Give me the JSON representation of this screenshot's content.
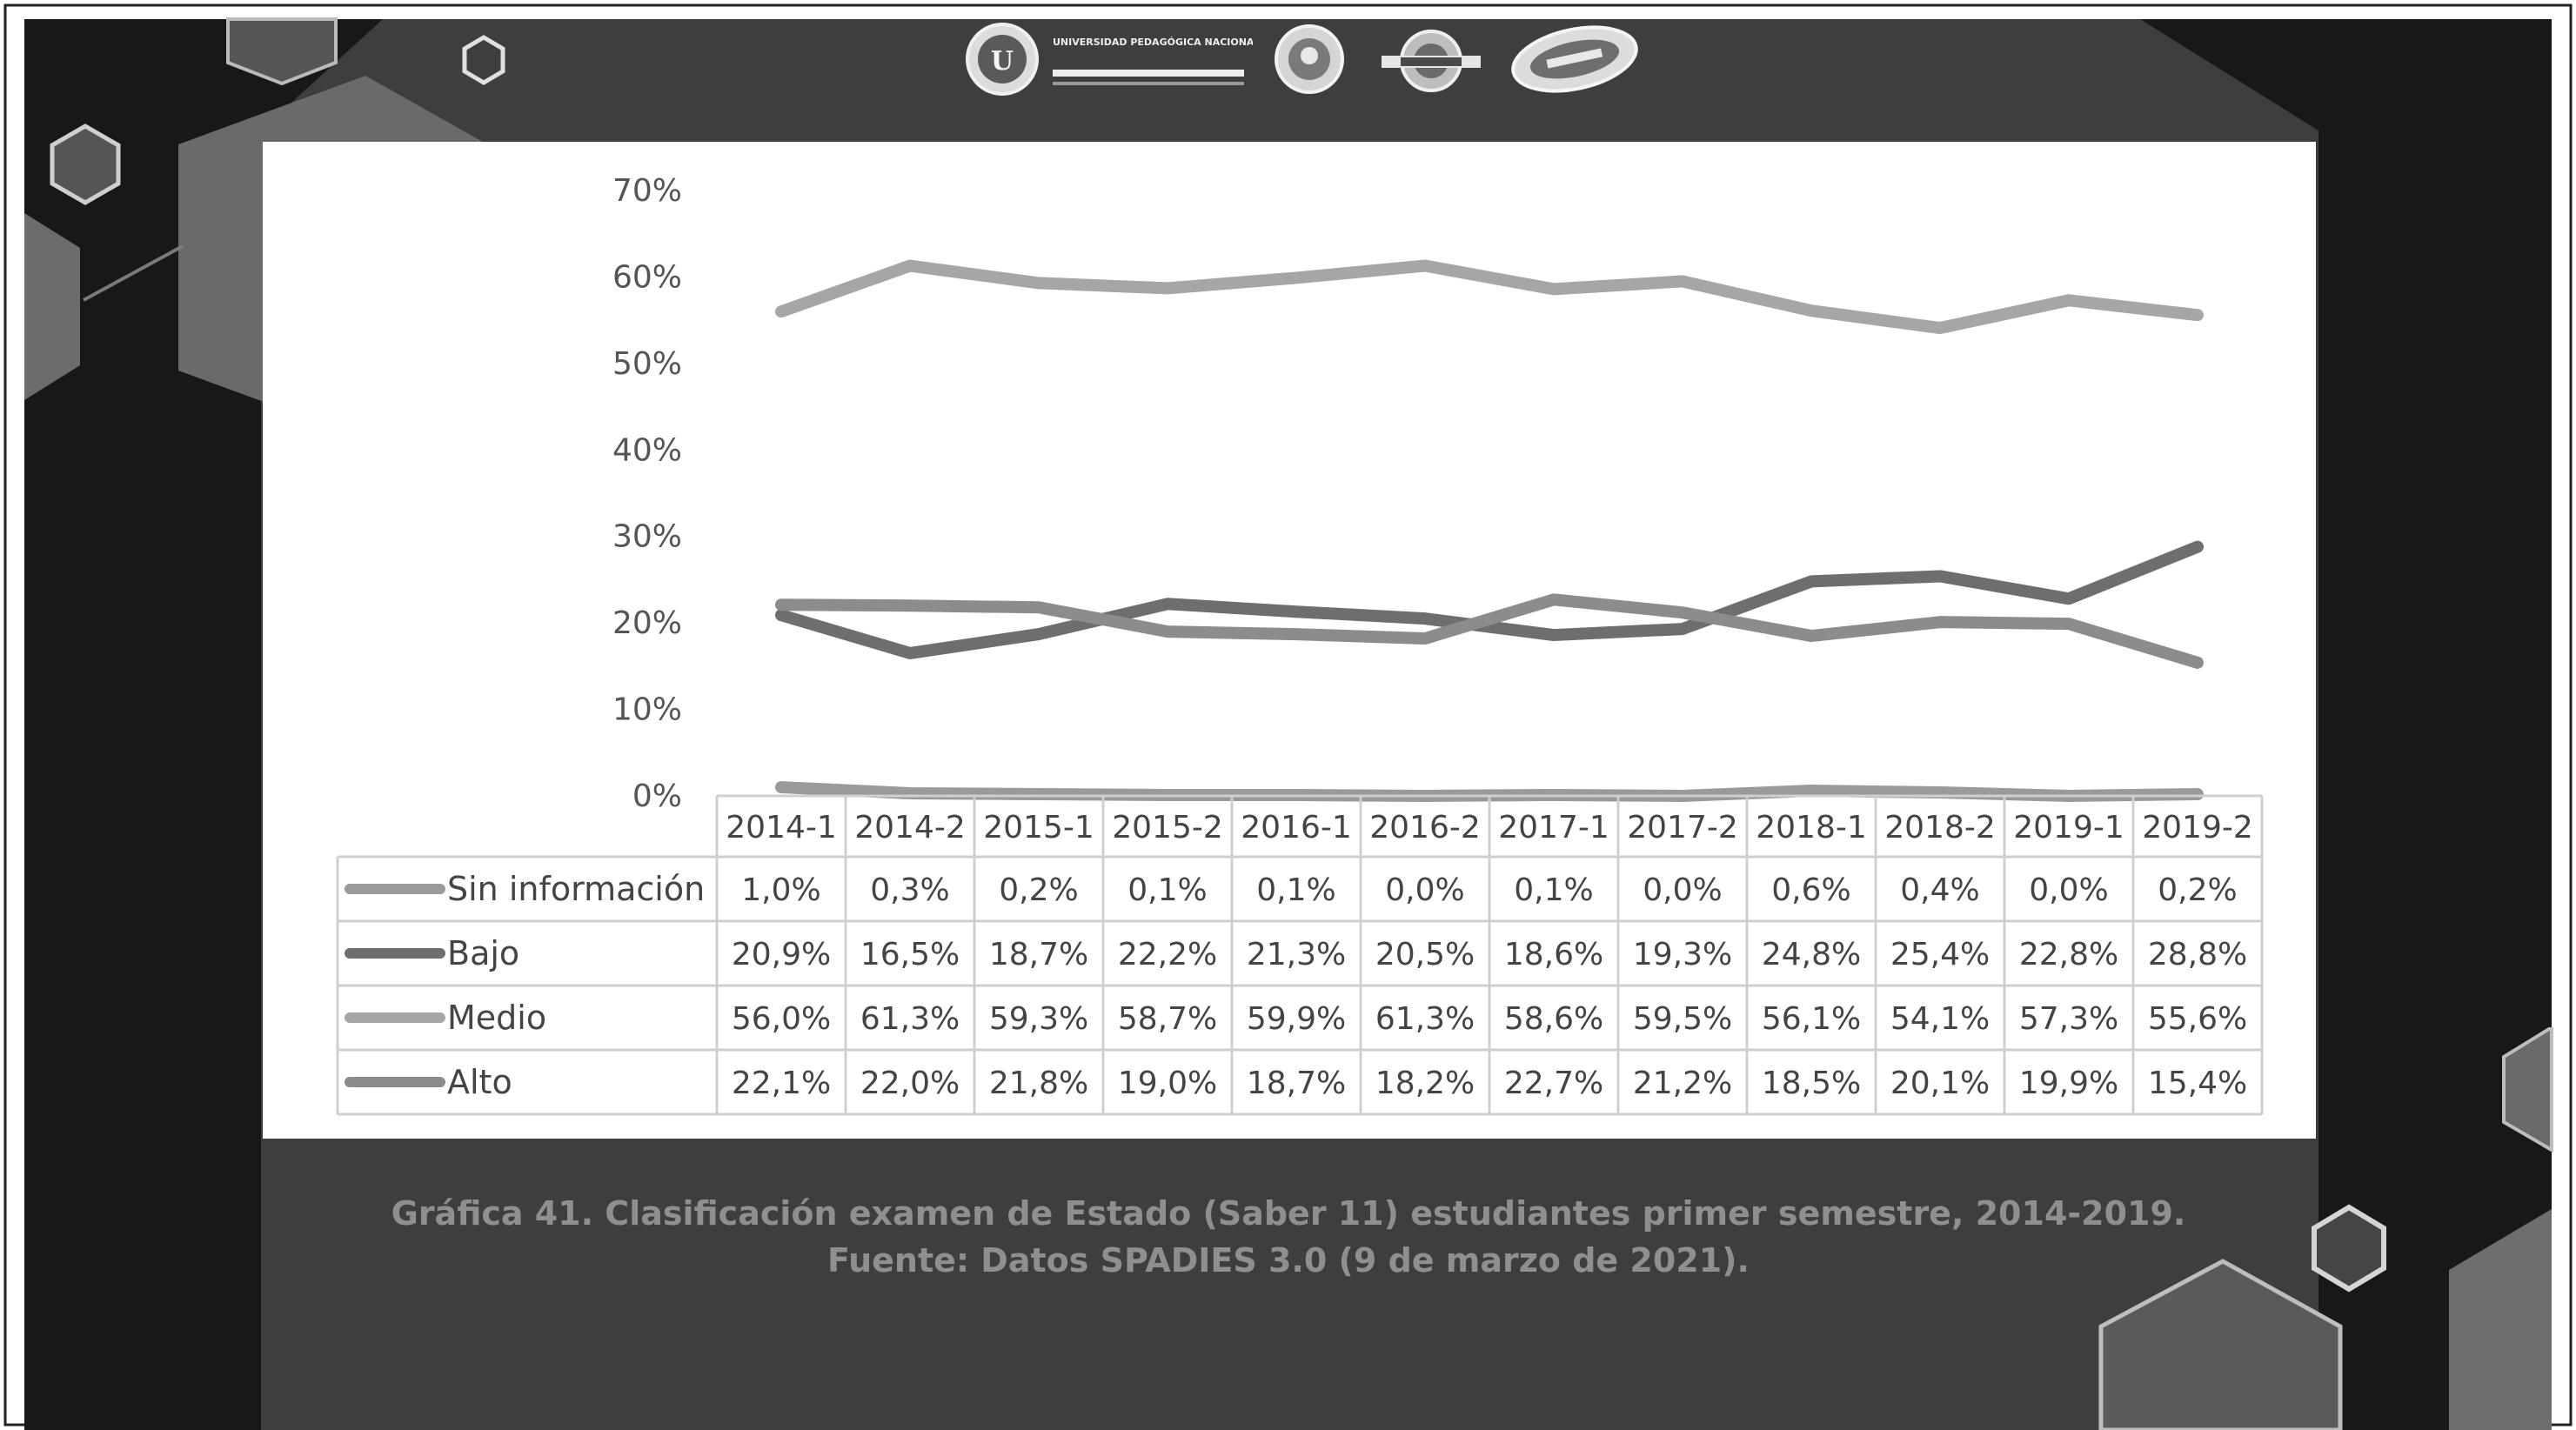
{
  "chart_data": {
    "type": "line",
    "categories": [
      "2014-1",
      "2014-2",
      "2015-1",
      "2015-2",
      "2016-1",
      "2016-2",
      "2017-1",
      "2017-2",
      "2018-1",
      "2018-2",
      "2019-1",
      "2019-2"
    ],
    "y_ticks": [
      "0%",
      "10%",
      "20%",
      "30%",
      "40%",
      "50%",
      "60%",
      "70%"
    ],
    "ylim": [
      0,
      70
    ],
    "grid": false,
    "legend": "data table below the chart",
    "series": [
      {
        "name": "Sin información",
        "values": [
          1.0,
          0.3,
          0.2,
          0.1,
          0.1,
          0.0,
          0.1,
          0.0,
          0.6,
          0.4,
          0.0,
          0.2
        ],
        "labels": [
          "1,0%",
          "0,3%",
          "0,2%",
          "0,1%",
          "0,1%",
          "0,0%",
          "0,1%",
          "0,0%",
          "0,6%",
          "0,4%",
          "0,0%",
          "0,2%"
        ],
        "color": "#9a9a9a"
      },
      {
        "name": "Bajo",
        "values": [
          20.9,
          16.5,
          18.7,
          22.2,
          21.3,
          20.5,
          18.6,
          19.3,
          24.8,
          25.4,
          22.8,
          28.8
        ],
        "labels": [
          "20,9%",
          "16,5%",
          "18,7%",
          "22,2%",
          "21,3%",
          "20,5%",
          "18,6%",
          "19,3%",
          "24,8%",
          "25,4%",
          "22,8%",
          "28,8%"
        ],
        "color": "#6e6e6e"
      },
      {
        "name": "Medio",
        "values": [
          56.0,
          61.3,
          59.3,
          58.7,
          59.9,
          61.3,
          58.6,
          59.5,
          56.1,
          54.1,
          57.3,
          55.6
        ],
        "labels": [
          "56,0%",
          "61,3%",
          "59,3%",
          "58,7%",
          "59,9%",
          "61,3%",
          "58,6%",
          "59,5%",
          "56,1%",
          "54,1%",
          "57,3%",
          "55,6%"
        ],
        "color": "#a6a6a6"
      },
      {
        "name": "Alto",
        "values": [
          22.1,
          22.0,
          21.8,
          19.0,
          18.7,
          18.2,
          22.7,
          21.2,
          18.5,
          20.1,
          19.9,
          15.4
        ],
        "labels": [
          "22,1%",
          "22,0%",
          "21,8%",
          "19,0%",
          "18,7%",
          "18,2%",
          "22,7%",
          "21,2%",
          "18,5%",
          "20,1%",
          "19,9%",
          "15,4%"
        ],
        "color": "#8c8c8c"
      }
    ]
  },
  "caption": {
    "line1": "Gráfica 41. Clasificación examen de Estado (Saber 11) estudiantes primer semestre, 2014-2019.",
    "line2": "Fuente: Datos SPADIES 3.0 (9 de marzo de 2021)."
  },
  "logos": {
    "university_name": "UNIVERSIDAD PEDAGÓGICA NACIONAL"
  }
}
